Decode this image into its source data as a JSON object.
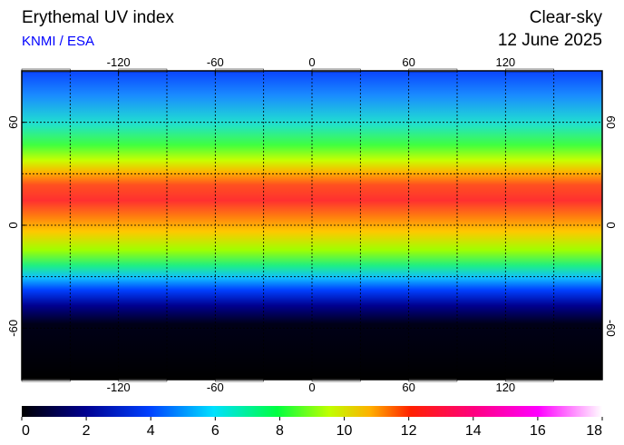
{
  "header": {
    "title": "Erythemal UV index",
    "source": "KNMI / ESA",
    "mode": "Clear-sky",
    "date": "12 June 2025"
  },
  "map": {
    "lon_ticks": [
      -120,
      -60,
      0,
      60,
      120
    ],
    "lat_ticks": [
      60,
      0,
      -60
    ],
    "lonlim": [
      -180,
      180
    ],
    "latlim": [
      -90,
      90
    ]
  },
  "colorbar": {
    "ticks": [
      0,
      2,
      4,
      6,
      8,
      10,
      12,
      14,
      16,
      18
    ],
    "lim": [
      0,
      18
    ]
  }
}
